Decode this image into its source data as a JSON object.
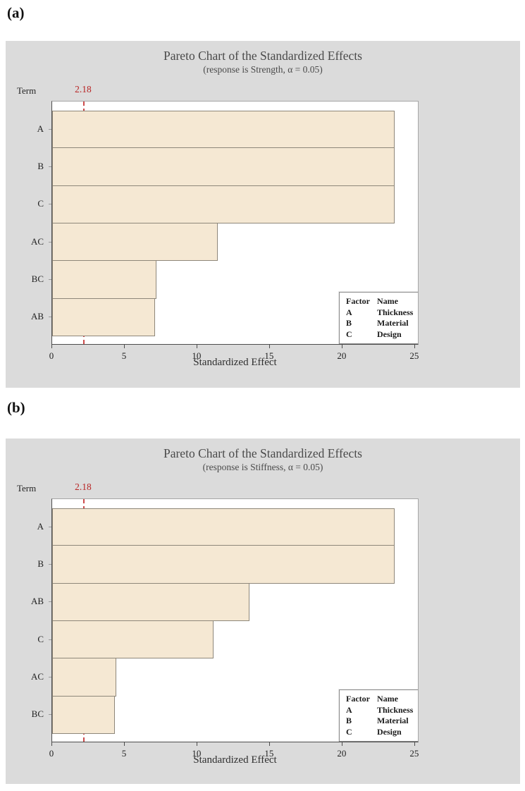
{
  "figure": {
    "panel_labels": [
      "(a)",
      "(b)"
    ]
  },
  "colors": {
    "panel_background": "#dbdbdb",
    "plot_background": "#ffffff",
    "bar_fill": "#f5e8d3",
    "bar_border": "#8e877a",
    "reference_line": "#cc4b4b",
    "reference_label": "#b82525",
    "title_text": "#4a4a4a",
    "axis_text": "#1f1f1f"
  },
  "chart_data": [
    {
      "type": "bar",
      "orientation": "horizontal",
      "title": "Pareto Chart of the Standardized Effects",
      "subtitle": "(response is Strength, α = 0.05)",
      "y_axis_label": "Term",
      "xlabel": "Standardized Effect",
      "categories": [
        "A",
        "B",
        "C",
        "AC",
        "BC",
        "AB"
      ],
      "values": [
        23.6,
        23.6,
        23.6,
        11.4,
        7.2,
        7.1
      ],
      "x_ticks": [
        0,
        5,
        10,
        15,
        20,
        25
      ],
      "xlim": [
        0,
        25.3
      ],
      "grid": false,
      "reference_line_value": 2.18,
      "reference_line_label": "2.18",
      "legend": {
        "position": "bottom-right",
        "headers": [
          "Factor",
          "Name"
        ],
        "rows": [
          [
            "A",
            "Thickness"
          ],
          [
            "B",
            "Material"
          ],
          [
            "C",
            "Design"
          ]
        ]
      }
    },
    {
      "type": "bar",
      "orientation": "horizontal",
      "title": "Pareto Chart of the Standardized Effects",
      "subtitle": "(response is Stiffness, α = 0.05)",
      "y_axis_label": "Term",
      "xlabel": "Standardized Effect",
      "categories": [
        "A",
        "B",
        "AB",
        "C",
        "AC",
        "BC"
      ],
      "values": [
        23.6,
        23.6,
        13.6,
        11.1,
        4.4,
        4.3
      ],
      "x_ticks": [
        0,
        5,
        10,
        15,
        20,
        25
      ],
      "xlim": [
        0,
        25.3
      ],
      "grid": false,
      "reference_line_value": 2.18,
      "reference_line_label": "2.18",
      "legend": {
        "position": "bottom-right",
        "headers": [
          "Factor",
          "Name"
        ],
        "rows": [
          [
            "A",
            "Thickness"
          ],
          [
            "B",
            "Material"
          ],
          [
            "C",
            "Design"
          ]
        ]
      }
    }
  ]
}
